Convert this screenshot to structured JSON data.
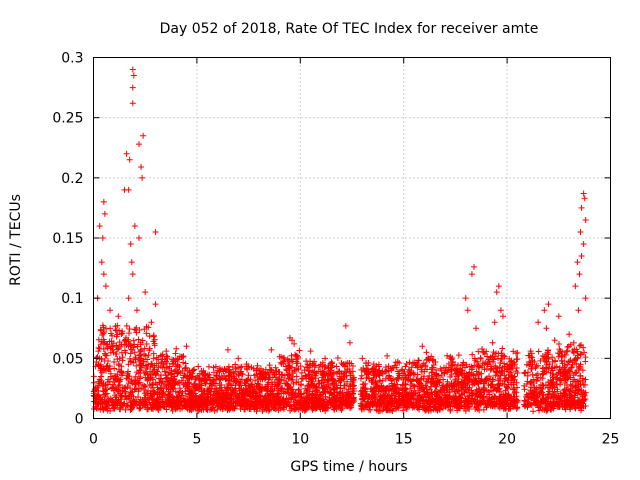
{
  "chart_data": {
    "type": "scatter",
    "title": "Day 052 of 2018, Rate Of TEC Index for receiver amte",
    "xlabel": "GPS time / hours",
    "ylabel": "ROTI / TECUs",
    "xlim": [
      0,
      25
    ],
    "ylim": [
      0,
      0.3
    ],
    "xticks": [
      0,
      5,
      10,
      15,
      20,
      25
    ],
    "yticks": [
      0,
      0.05,
      0.1,
      0.15,
      0.2,
      0.25,
      0.3
    ],
    "xtick_labels": [
      "0",
      "5",
      "10",
      "15",
      "20",
      "25"
    ],
    "ytick_labels": [
      "0",
      "0.05",
      "0.1",
      "0.15",
      "0.2",
      "0.25",
      "0.3"
    ],
    "grid": true,
    "marker": "+",
    "series": [
      {
        "name": "ROTI",
        "color": "#ff0000",
        "gaps_hours": [
          [
            12.6,
            12.9
          ],
          [
            20.5,
            20.8
          ],
          [
            23.8,
            25
          ]
        ],
        "outliers": [
          [
            1.9,
            0.29
          ],
          [
            1.95,
            0.285
          ],
          [
            1.9,
            0.275
          ],
          [
            1.9,
            0.262
          ],
          [
            2.4,
            0.235
          ],
          [
            2.2,
            0.228
          ],
          [
            1.6,
            0.22
          ],
          [
            1.75,
            0.215
          ],
          [
            2.3,
            0.209
          ],
          [
            2.35,
            0.2
          ],
          [
            1.5,
            0.19
          ],
          [
            1.7,
            0.19
          ],
          [
            0.5,
            0.18
          ],
          [
            0.55,
            0.17
          ],
          [
            0.3,
            0.16
          ],
          [
            0.45,
            0.15
          ],
          [
            3.0,
            0.155
          ],
          [
            2.0,
            0.16
          ],
          [
            2.2,
            0.15
          ],
          [
            1.8,
            0.145
          ],
          [
            1.85,
            0.13
          ],
          [
            1.9,
            0.12
          ],
          [
            0.4,
            0.13
          ],
          [
            0.5,
            0.12
          ],
          [
            0.6,
            0.11
          ],
          [
            0.2,
            0.1
          ],
          [
            1.7,
            0.1
          ],
          [
            2.5,
            0.105
          ],
          [
            3.0,
            0.095
          ],
          [
            2.1,
            0.09
          ],
          [
            2.8,
            0.08
          ],
          [
            0.8,
            0.09
          ],
          [
            1.2,
            0.085
          ],
          [
            12.2,
            0.077
          ],
          [
            9.5,
            0.067
          ],
          [
            9.6,
            0.065
          ],
          [
            18.4,
            0.126
          ],
          [
            18.3,
            0.12
          ],
          [
            18.0,
            0.1
          ],
          [
            18.1,
            0.09
          ],
          [
            19.6,
            0.11
          ],
          [
            19.5,
            0.105
          ],
          [
            19.7,
            0.09
          ],
          [
            19.4,
            0.08
          ],
          [
            19.8,
            0.085
          ],
          [
            18.5,
            0.075
          ],
          [
            19.3,
            0.063
          ],
          [
            23.7,
            0.187
          ],
          [
            23.75,
            0.183
          ],
          [
            23.6,
            0.175
          ],
          [
            23.8,
            0.165
          ],
          [
            23.55,
            0.155
          ],
          [
            23.7,
            0.145
          ],
          [
            23.6,
            0.135
          ],
          [
            23.4,
            0.13
          ],
          [
            23.5,
            0.12
          ],
          [
            23.3,
            0.11
          ],
          [
            23.8,
            0.1
          ],
          [
            23.45,
            0.09
          ],
          [
            22.0,
            0.095
          ],
          [
            21.8,
            0.09
          ],
          [
            21.5,
            0.08
          ],
          [
            22.5,
            0.085
          ],
          [
            23.0,
            0.07
          ],
          [
            22.3,
            0.065
          ],
          [
            21.9,
            0.075
          ],
          [
            15.9,
            0.06
          ],
          [
            16.1,
            0.055
          ],
          [
            13.0,
            0.05
          ],
          [
            14.2,
            0.052
          ],
          [
            10.5,
            0.056
          ],
          [
            4.5,
            0.06
          ],
          [
            4.0,
            0.058
          ],
          [
            6.5,
            0.057
          ],
          [
            8.6,
            0.057
          ],
          [
            7.0,
            0.05
          ],
          [
            11.2,
            0.05
          ],
          [
            9.7,
            0.062
          ],
          [
            12.4,
            0.063
          ]
        ]
      }
    ]
  }
}
